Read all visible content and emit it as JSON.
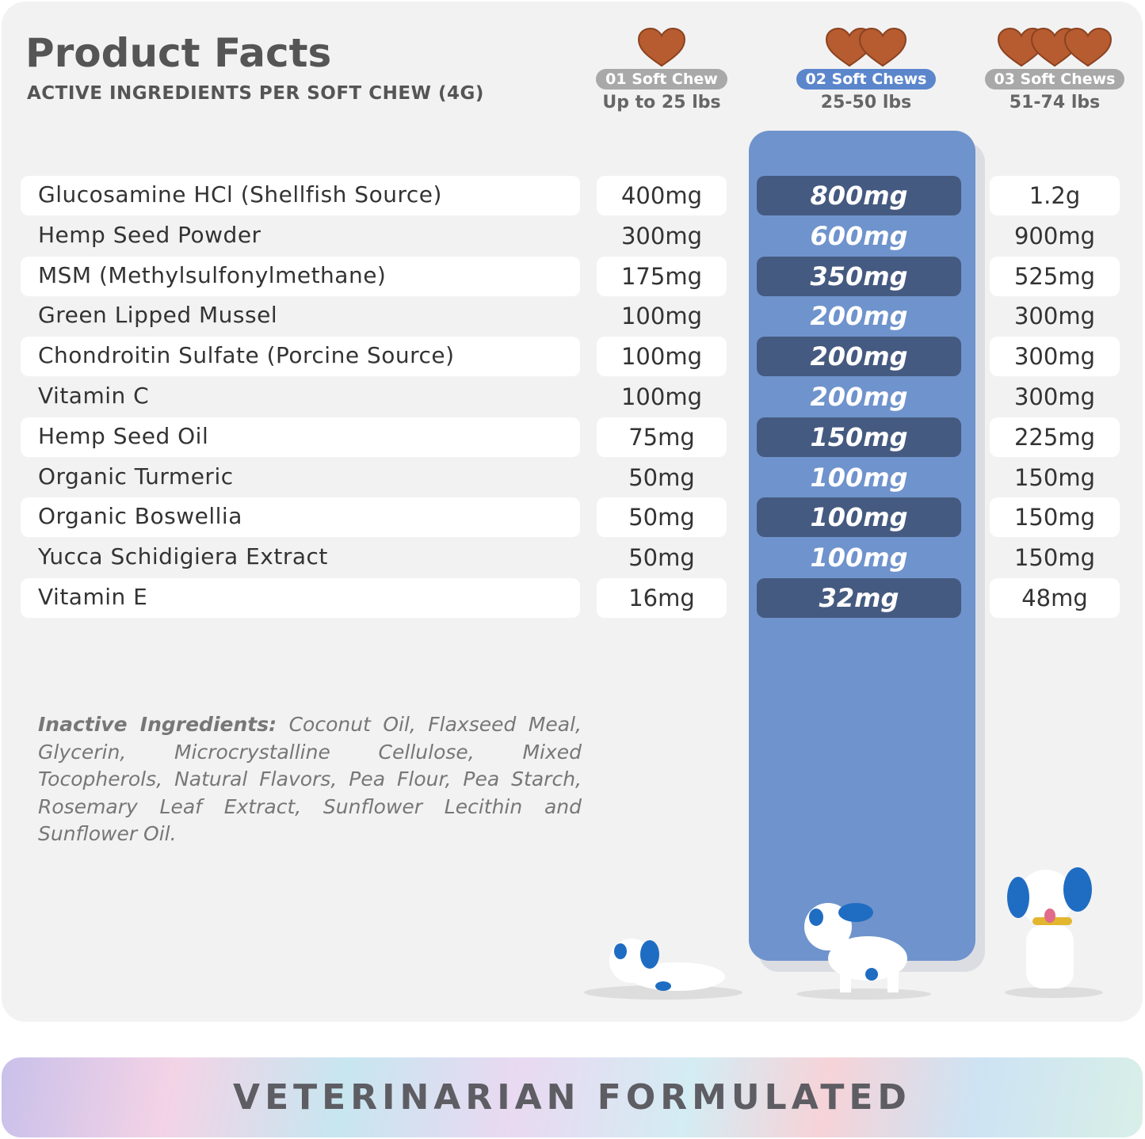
{
  "header": {
    "title": "Product Facts",
    "subtitle": "ACTIVE INGREDIENTS PER SOFT CHEW (4G)"
  },
  "columns": [
    {
      "label": "01 Soft Chew",
      "weight": "Up to 25 lbs",
      "chews": 1
    },
    {
      "label": "02 Soft Chews",
      "weight": "25-50 lbs",
      "chews": 2,
      "highlighted": true
    },
    {
      "label": "03 Soft Chews",
      "weight": "51-74 lbs",
      "chews": 3
    }
  ],
  "rows": [
    {
      "name": "Glucosamine HCl (Shellfish Source)",
      "v1": "400mg",
      "v2": "800",
      "v3": "1.2g"
    },
    {
      "name": "Hemp Seed Powder",
      "v1": "300mg",
      "v2": "600",
      "v3": "900mg"
    },
    {
      "name": "MSM (Methylsulfonylmethane)",
      "v1": "175mg",
      "v2": "350",
      "v3": "525mg"
    },
    {
      "name": "Green Lipped Mussel",
      "v1": "100mg",
      "v2": "200",
      "v3": "300mg"
    },
    {
      "name": "Chondroitin Sulfate (Porcine Source)",
      "v1": "100mg",
      "v2": "200",
      "v3": "300mg"
    },
    {
      "name": "Vitamin C",
      "v1": "100mg",
      "v2": "200",
      "v3": "300mg"
    },
    {
      "name": "Hemp Seed Oil",
      "v1": "75mg",
      "v2": "150",
      "v3": "225mg"
    },
    {
      "name": "Organic Turmeric",
      "v1": "50mg",
      "v2": "100",
      "v3": "150mg"
    },
    {
      "name": "Organic Boswellia",
      "v1": "50mg",
      "v2": "100",
      "v3": "150mg"
    },
    {
      "name": "Yucca Schidigiera Extract",
      "v1": "50mg",
      "v2": "100",
      "v3": "150mg"
    },
    {
      "name": "Vitamin E",
      "v1": "16mg",
      "v2": "32",
      "v3": "48mg"
    }
  ],
  "unit": "mg",
  "inactive": {
    "label": "Inactive Ingredients:",
    "text": "Coconut Oil, Flaxseed Meal, Glycerin, Microcrystalline Cellulose, Mixed Tocopherols, Natural Flavors, Pea Flour, Pea Starch, Rosemary Leaf Extract, Sunflower Lecithin and Sunflower Oil."
  },
  "banner": "VETERINARIAN FORMULATED",
  "colors": {
    "pillar": "#6f93cc",
    "highlight_cell": "#455a80",
    "chew": "#b65c30",
    "pill_active": "#5b86cc",
    "pill": "#a9a9a9"
  }
}
